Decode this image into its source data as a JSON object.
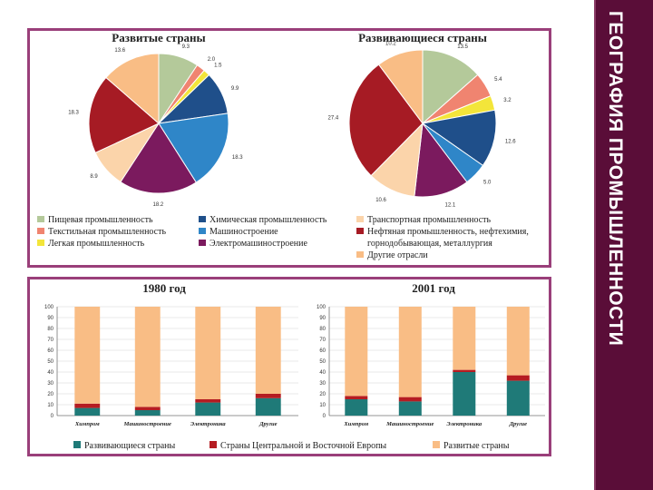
{
  "page_title": "ГЕОГРАФИЯ ПРОМЫШЛЕННОСТИ",
  "colors": {
    "food": "#b4c99a",
    "textile": "#f08470",
    "light": "#f3e53a",
    "chemical": "#1f4f8a",
    "machine": "#2f86c8",
    "electro": "#7b1a5e",
    "transport": "#fbd4aa",
    "oil": "#a61b24",
    "other": "#f9bd85",
    "developing": "#1f7a78",
    "ceeurope": "#b51c22",
    "developed": "#f9bd85"
  },
  "chart_data": [
    {
      "type": "pie",
      "title": "Развитые страны",
      "slices": [
        {
          "key": "food",
          "value": 9.3,
          "label": "9.3"
        },
        {
          "key": "textile",
          "value": 2.0,
          "label": "2.0"
        },
        {
          "key": "light",
          "value": 1.5,
          "label": "1.5"
        },
        {
          "key": "chemical",
          "value": 9.9,
          "label": "9.9"
        },
        {
          "key": "machine",
          "value": 18.3,
          "label": "18.3"
        },
        {
          "key": "electro",
          "value": 18.2,
          "label": "18.2"
        },
        {
          "key": "transport",
          "value": 8.9,
          "label": "8.9"
        },
        {
          "key": "oil",
          "value": 18.3,
          "label": "18.3"
        },
        {
          "key": "other",
          "value": 13.6,
          "label": "13.6"
        }
      ]
    },
    {
      "type": "pie",
      "title": "Развивающиеся страны",
      "slices": [
        {
          "key": "food",
          "value": 13.5,
          "label": "13.5"
        },
        {
          "key": "textile",
          "value": 5.4,
          "label": "5.4"
        },
        {
          "key": "light",
          "value": 3.2,
          "label": "3.2"
        },
        {
          "key": "chemical",
          "value": 12.6,
          "label": "12.6"
        },
        {
          "key": "machine",
          "value": 5.0,
          "label": "5.0"
        },
        {
          "key": "electro",
          "value": 12.1,
          "label": "12.1"
        },
        {
          "key": "transport",
          "value": 10.6,
          "label": "10.6"
        },
        {
          "key": "oil",
          "value": 27.4,
          "label": "27.4"
        },
        {
          "key": "other",
          "value": 10.2,
          "label": "10.2"
        }
      ]
    },
    {
      "type": "bar",
      "stacked": true,
      "title": "1980 год",
      "categories": [
        "Химпром",
        "Машиностроение",
        "Электроника",
        "Другие"
      ],
      "ylim": [
        0,
        100
      ],
      "yticks": [
        "0",
        "10",
        "20",
        "30",
        "40",
        "50",
        "60",
        "70",
        "80",
        "90",
        "100"
      ],
      "series": [
        {
          "key": "developing",
          "values": [
            7,
            5,
            12,
            16
          ]
        },
        {
          "key": "ceeurope",
          "values": [
            4,
            3,
            3,
            4
          ]
        },
        {
          "key": "developed",
          "values": [
            89,
            92,
            85,
            80
          ]
        }
      ]
    },
    {
      "type": "bar",
      "stacked": true,
      "title": "2001 год",
      "categories": [
        "Химпром",
        "Машиностроение",
        "Электроника",
        "Другие"
      ],
      "ylim": [
        0,
        100
      ],
      "yticks": [
        "0",
        "10",
        "20",
        "30",
        "40",
        "50",
        "60",
        "70",
        "80",
        "90",
        "100"
      ],
      "series": [
        {
          "key": "developing",
          "values": [
            15,
            13,
            40,
            32
          ]
        },
        {
          "key": "ceeurope",
          "values": [
            3,
            4,
            2,
            5
          ]
        },
        {
          "key": "developed",
          "values": [
            82,
            83,
            58,
            63
          ]
        }
      ]
    }
  ],
  "pie_legend": [
    {
      "key": "food",
      "label": "Пищевая промышленность"
    },
    {
      "key": "textile",
      "label": "Текстильная промышленность"
    },
    {
      "key": "light",
      "label": "Легкая промышленность"
    },
    {
      "key": "chemical",
      "label": "Химическая промышленность"
    },
    {
      "key": "machine",
      "label": "Машиностроение"
    },
    {
      "key": "electro",
      "label": "Электромашиностроение"
    },
    {
      "key": "transport",
      "label": "Транспортная промышленность"
    },
    {
      "key": "oil",
      "label": "Нефтяная промышленность, нефтехимия,"
    },
    {
      "key": "oil_cont",
      "label": "горнодобывающая, металлургия"
    },
    {
      "key": "other",
      "label": "Другие отрасли"
    }
  ],
  "bar_legend": [
    {
      "key": "developing",
      "label": "Развивающиеся страны"
    },
    {
      "key": "ceeurope",
      "label": "Страны Центральной и Восточной Европы"
    },
    {
      "key": "developed",
      "label": "Развитые страны"
    }
  ]
}
